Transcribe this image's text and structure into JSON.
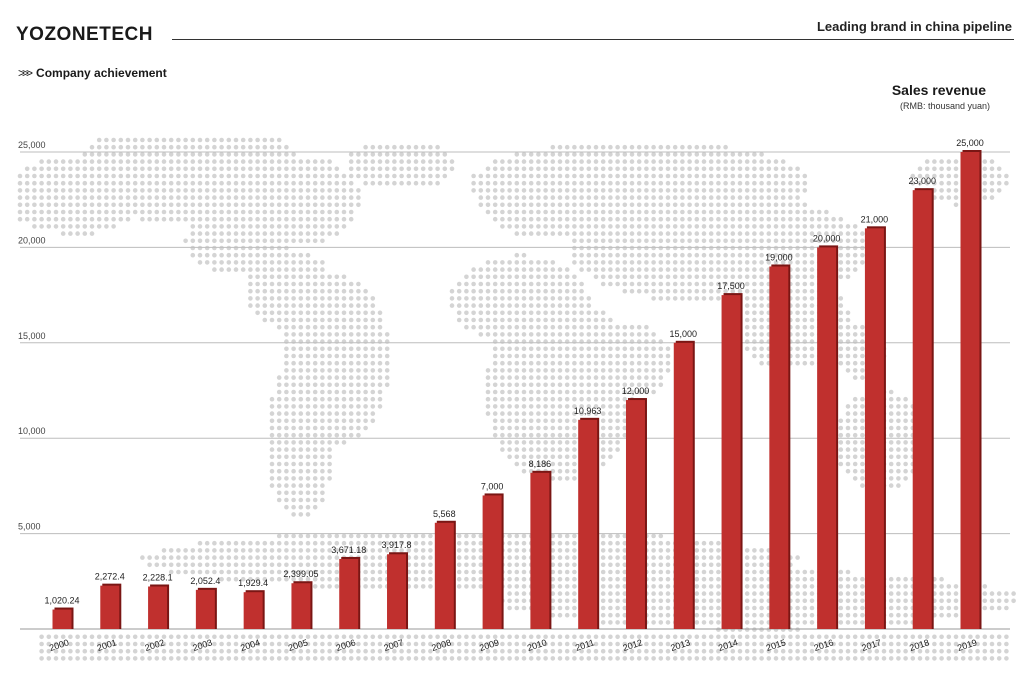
{
  "header": {
    "brand": "YOZONETECH",
    "tagline": "Leading brand in china pipeline"
  },
  "section": {
    "chevrons": ">>>",
    "title": "Company  achievement"
  },
  "chart_title": {
    "title": "Sales revenue",
    "unit": "(RMB:  thousand yuan)"
  },
  "colors": {
    "bar": "#c0302e",
    "bar_shadow": "#7a1614",
    "grid": "#bdbdbd",
    "map_dots": "#d4d4d4"
  },
  "chart_data": {
    "type": "bar",
    "title": "Sales revenue",
    "ylabel": "(RMB:  thousand yuan)",
    "xlabel": "",
    "ylim": [
      0,
      25000
    ],
    "yticks": [
      5000,
      10000,
      15000,
      20000,
      25000
    ],
    "ytick_labels": [
      "5,000",
      "10,000",
      "15,000",
      "20,000",
      "25,000"
    ],
    "grid": true,
    "categories": [
      "2000",
      "2001",
      "2002",
      "2003",
      "2004",
      "2005",
      "2006",
      "2007",
      "2008",
      "2009",
      "2010",
      "2011",
      "2012",
      "2013",
      "2014",
      "2015",
      "2016",
      "2017",
      "2018",
      "2019"
    ],
    "values": [
      1020.24,
      2272.4,
      2228.1,
      2052.4,
      1929.4,
      2399.05,
      3671.18,
      3917.8,
      5568,
      7000,
      8186,
      10963,
      12000,
      15000,
      17500,
      19000,
      20000,
      21000,
      23000,
      25000
    ],
    "value_labels": [
      "1,020.24",
      "2,272.4",
      "2,228.1",
      "2,052.4",
      "1,929.4",
      "2,399.05",
      "3,671.18",
      "3,917.8",
      "5,568",
      "7,000",
      "8,186",
      "10,963",
      "12,000",
      "15,000",
      "17,500",
      "19,000",
      "20,000",
      "21,000",
      "23,000",
      "25,000"
    ]
  }
}
